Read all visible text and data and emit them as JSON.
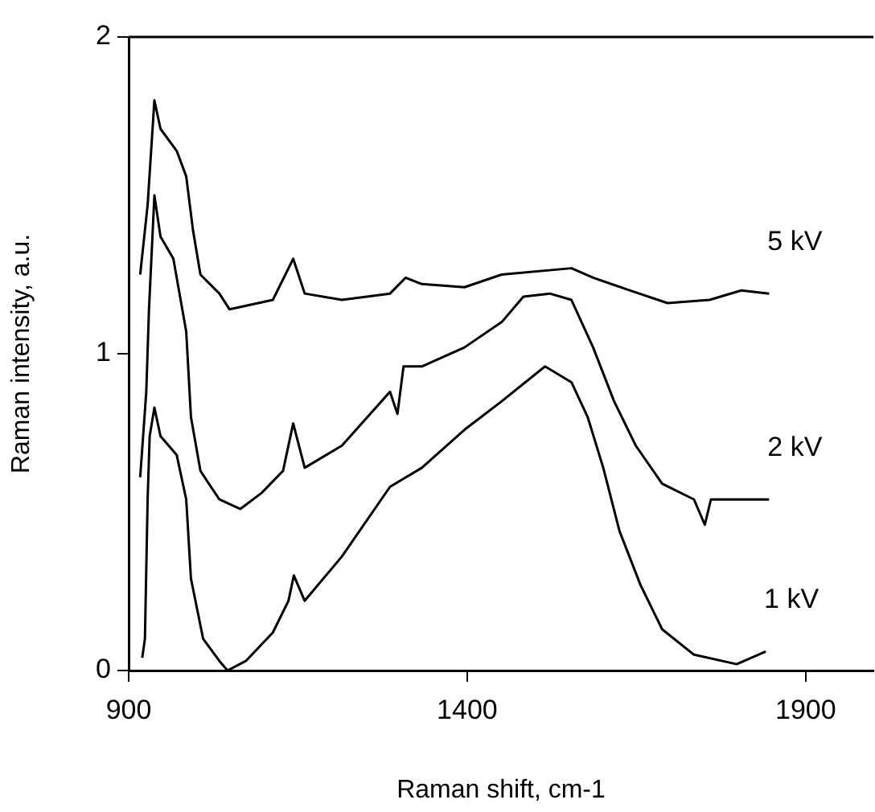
{
  "chart_data": {
    "type": "line",
    "xlabel": "Raman shift, cm-1",
    "ylabel": "Raman intensity, a.u.",
    "xlim": [
      900,
      2000
    ],
    "xticks": [
      900,
      1400,
      1900
    ],
    "ylim": [
      0,
      2
    ],
    "yticks": [
      0,
      1,
      2
    ],
    "grid": false,
    "legend": false,
    "marker": "none",
    "line_style": "solid",
    "series": [
      {
        "name": "5 kV",
        "color": "#000000",
        "x": [
          917,
          928,
          938,
          947,
          971,
          985,
          995,
          1006,
          1034,
          1049,
          1113,
          1143,
          1160,
          1215,
          1286,
          1309,
          1333,
          1396,
          1451,
          1554,
          1586,
          1640,
          1696,
          1758,
          1805,
          1846
        ],
        "values": [
          1.25,
          1.47,
          1.8,
          1.71,
          1.64,
          1.56,
          1.39,
          1.25,
          1.19,
          1.14,
          1.17,
          1.3,
          1.19,
          1.17,
          1.19,
          1.24,
          1.22,
          1.21,
          1.25,
          1.27,
          1.24,
          1.2,
          1.16,
          1.17,
          1.2,
          1.19
        ]
      },
      {
        "name": "2 kV",
        "color": "#000000",
        "x": [
          917,
          926,
          930,
          938,
          947,
          966,
          985,
          992,
          1006,
          1034,
          1065,
          1096,
          1128,
          1143,
          1160,
          1215,
          1286,
          1297,
          1306,
          1333,
          1396,
          1451,
          1483,
          1522,
          1554,
          1586,
          1617,
          1649,
          1688,
          1735,
          1751,
          1760,
          1798,
          1846
        ],
        "values": [
          0.61,
          0.88,
          1.14,
          1.5,
          1.37,
          1.3,
          1.07,
          0.8,
          0.63,
          0.54,
          0.51,
          0.56,
          0.63,
          0.78,
          0.64,
          0.71,
          0.88,
          0.81,
          0.96,
          0.96,
          1.02,
          1.1,
          1.18,
          1.19,
          1.17,
          1.02,
          0.85,
          0.71,
          0.59,
          0.54,
          0.46,
          0.54,
          0.54,
          0.54
        ]
      },
      {
        "name": "1 kV",
        "color": "#000000",
        "x": [
          920,
          924,
          928,
          931,
          938,
          947,
          971,
          985,
          992,
          1010,
          1034,
          1046,
          1073,
          1113,
          1136,
          1144,
          1160,
          1215,
          1286,
          1333,
          1396,
          1451,
          1515,
          1554,
          1578,
          1601,
          1625,
          1656,
          1688,
          1735,
          1798,
          1841
        ],
        "values": [
          0.04,
          0.1,
          0.54,
          0.74,
          0.83,
          0.74,
          0.68,
          0.54,
          0.29,
          0.1,
          0.03,
          0.0,
          0.03,
          0.12,
          0.22,
          0.3,
          0.22,
          0.36,
          0.58,
          0.64,
          0.76,
          0.85,
          0.96,
          0.91,
          0.8,
          0.64,
          0.44,
          0.27,
          0.13,
          0.05,
          0.02,
          0.06
        ]
      }
    ]
  }
}
